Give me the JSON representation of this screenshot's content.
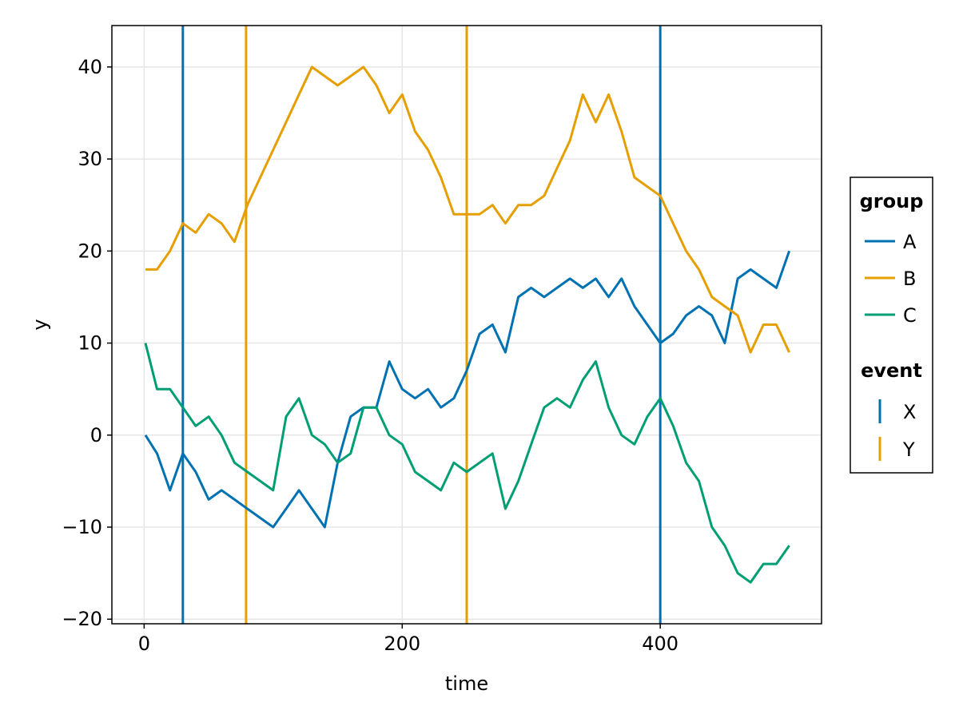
{
  "chart_data": {
    "type": "line",
    "title": "",
    "xlabel": "time",
    "ylabel": "y",
    "xlim": [
      -25,
      525
    ],
    "ylim": [
      -20.5,
      44.5
    ],
    "xticks": [
      0,
      200,
      400
    ],
    "yticks": [
      -20,
      -10,
      0,
      10,
      20,
      30,
      40
    ],
    "xtick_labels": [
      "0",
      "200",
      "400"
    ],
    "ytick_labels": [
      "−20",
      "−10",
      "0",
      "10",
      "20",
      "30",
      "40"
    ],
    "grid": true,
    "legend_position": "right",
    "legend": {
      "group_title": "group",
      "group_entries": [
        "A",
        "B",
        "C"
      ],
      "event_title": "event",
      "event_entries": [
        "X",
        "Y"
      ]
    },
    "colors": {
      "A": "#0072b2",
      "B": "#e69f00",
      "C": "#009e73",
      "X": "#0072b2",
      "Y": "#e69f00"
    },
    "series": [
      {
        "name": "A",
        "x": [
          1,
          10,
          20,
          30,
          40,
          50,
          60,
          70,
          80,
          90,
          100,
          110,
          120,
          130,
          140,
          150,
          160,
          170,
          180,
          190,
          200,
          210,
          220,
          230,
          240,
          250,
          260,
          270,
          280,
          290,
          300,
          310,
          320,
          330,
          340,
          350,
          360,
          370,
          380,
          390,
          400,
          410,
          420,
          430,
          440,
          450,
          460,
          470,
          480,
          490,
          500
        ],
        "y": [
          0,
          -2,
          -6,
          -2,
          -4,
          -7,
          -6,
          -7,
          -8,
          -9,
          -10,
          -8,
          -6,
          -8,
          -10,
          -3,
          2,
          3,
          3,
          8,
          5,
          4,
          5,
          3,
          4,
          7,
          11,
          12,
          9,
          15,
          16,
          15,
          16,
          17,
          16,
          17,
          15,
          17,
          14,
          12,
          10,
          11,
          13,
          14,
          13,
          10,
          17,
          18,
          17,
          16,
          20
        ]
      },
      {
        "name": "B",
        "x": [
          1,
          10,
          20,
          30,
          40,
          50,
          60,
          70,
          80,
          90,
          100,
          110,
          120,
          130,
          140,
          150,
          160,
          170,
          180,
          190,
          200,
          210,
          220,
          230,
          240,
          250,
          260,
          270,
          280,
          290,
          300,
          310,
          320,
          330,
          340,
          350,
          360,
          370,
          380,
          390,
          400,
          410,
          420,
          430,
          440,
          450,
          460,
          470,
          480,
          490,
          500
        ],
        "y": [
          18,
          18,
          20,
          23,
          22,
          24,
          23,
          21,
          25,
          28,
          31,
          34,
          37,
          40,
          39,
          38,
          39,
          40,
          38,
          35,
          37,
          33,
          31,
          28,
          24,
          24,
          24,
          25,
          23,
          25,
          25,
          26,
          29,
          32,
          37,
          34,
          37,
          33,
          28,
          27,
          26,
          23,
          20,
          18,
          15,
          14,
          13,
          9,
          12,
          12,
          9
        ]
      },
      {
        "name": "C",
        "x": [
          1,
          10,
          20,
          30,
          40,
          50,
          60,
          70,
          80,
          90,
          100,
          110,
          120,
          130,
          140,
          150,
          160,
          170,
          180,
          190,
          200,
          210,
          220,
          230,
          240,
          250,
          260,
          270,
          280,
          290,
          300,
          310,
          320,
          330,
          340,
          350,
          360,
          370,
          380,
          390,
          400,
          410,
          420,
          430,
          440,
          450,
          460,
          470,
          480,
          490,
          500
        ],
        "y": [
          10,
          5,
          5,
          3,
          1,
          2,
          0,
          -3,
          -4,
          -5,
          -6,
          2,
          4,
          0,
          -1,
          -3,
          -2,
          3,
          3,
          0,
          -1,
          -4,
          -5,
          -6,
          -3,
          -4,
          -3,
          -2,
          -8,
          -5,
          -1,
          3,
          4,
          3,
          6,
          8,
          3,
          0,
          -1,
          2,
          4,
          1,
          -3,
          -5,
          -10,
          -12,
          -15,
          -16,
          -14,
          -14,
          -12
        ]
      }
    ],
    "vlines": [
      {
        "event": "X",
        "x": 30
      },
      {
        "event": "Y",
        "x": 79
      },
      {
        "event": "Y",
        "x": 250
      },
      {
        "event": "X",
        "x": 400
      }
    ]
  }
}
